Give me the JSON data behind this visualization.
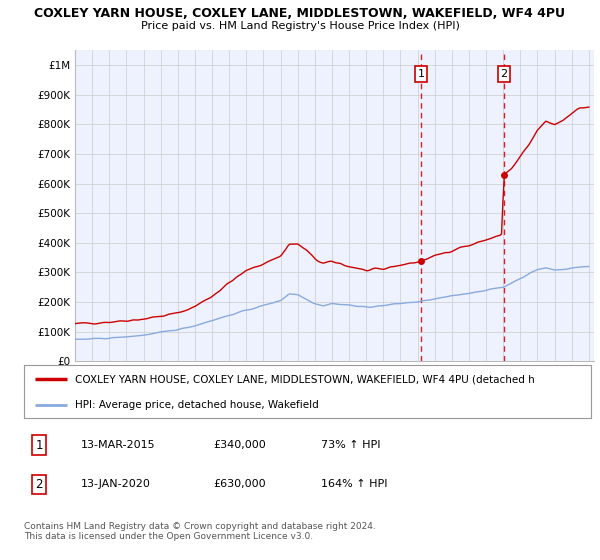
{
  "title1": "COXLEY YARN HOUSE, COXLEY LANE, MIDDLESTOWN, WAKEFIELD, WF4 4PU",
  "title2": "Price paid vs. HM Land Registry's House Price Index (HPI)",
  "xlim": [
    1995.0,
    2025.3
  ],
  "ylim": [
    0,
    1050000
  ],
  "yticks": [
    0,
    100000,
    200000,
    300000,
    400000,
    500000,
    600000,
    700000,
    800000,
    900000,
    1000000
  ],
  "ytick_labels": [
    "£0",
    "£100K",
    "£200K",
    "£300K",
    "£400K",
    "£500K",
    "£600K",
    "£700K",
    "£800K",
    "£900K",
    "£1M"
  ],
  "xticks": [
    1995,
    1996,
    1997,
    1998,
    1999,
    2000,
    2001,
    2002,
    2003,
    2004,
    2005,
    2006,
    2007,
    2008,
    2009,
    2010,
    2011,
    2012,
    2013,
    2014,
    2015,
    2016,
    2017,
    2018,
    2019,
    2020,
    2021,
    2022,
    2023,
    2024,
    2025
  ],
  "red_line_color": "#CC0000",
  "blue_line_color": "#88AADD",
  "dashed_line_color": "#CC0000",
  "transaction1_x": 2015.2,
  "transaction1_y": 340000,
  "transaction2_x": 2020.05,
  "transaction2_y": 630000,
  "legend_red": "COXLEY YARN HOUSE, COXLEY LANE, MIDDLESTOWN, WAKEFIELD, WF4 4PU (detached h",
  "legend_blue": "HPI: Average price, detached house, Wakefield",
  "table_row1": [
    "1",
    "13-MAR-2015",
    "£340,000",
    "73% ↑ HPI"
  ],
  "table_row2": [
    "2",
    "13-JAN-2020",
    "£630,000",
    "164% ↑ HPI"
  ],
  "footnote": "Contains HM Land Registry data © Crown copyright and database right 2024.\nThis data is licensed under the Open Government Licence v3.0.",
  "bg_color": "#FFFFFF",
  "plot_bg_color": "#EEF2FF",
  "grid_color": "#CCCCCC"
}
